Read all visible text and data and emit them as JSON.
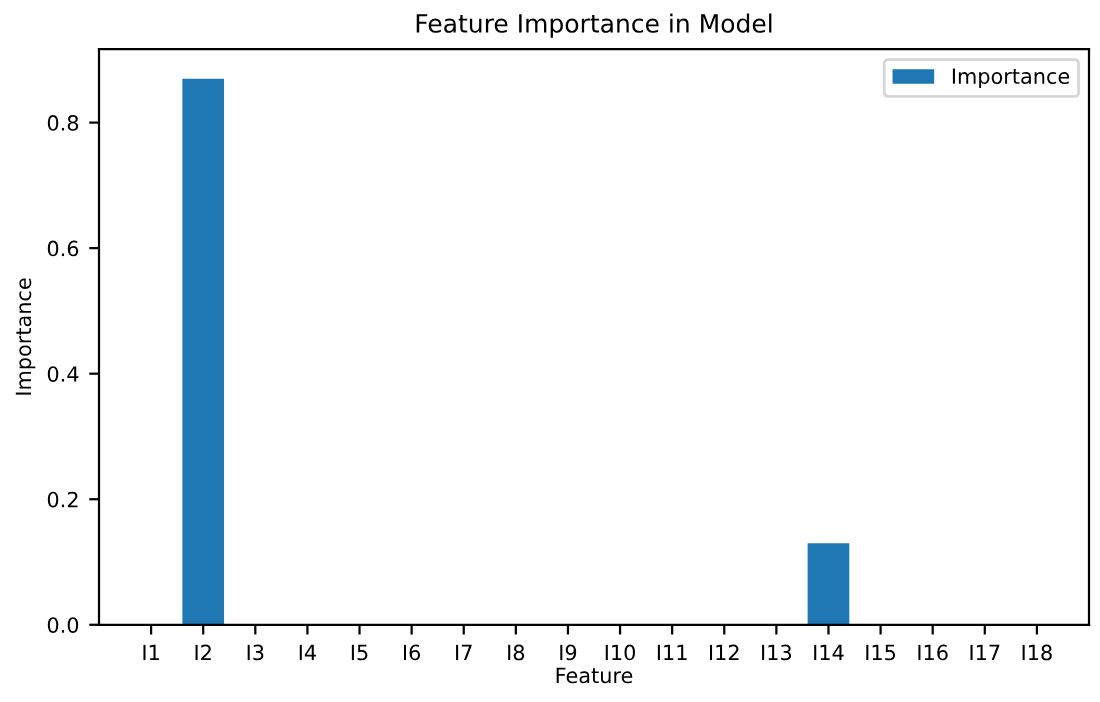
{
  "chart_data": {
    "type": "bar",
    "title": "Feature Importance in Model",
    "xlabel": "Feature",
    "ylabel": "Importance",
    "categories": [
      "I1",
      "I2",
      "I3",
      "I4",
      "I5",
      "I6",
      "I7",
      "I8",
      "I9",
      "I10",
      "I11",
      "I12",
      "I13",
      "I14",
      "I15",
      "I16",
      "I17",
      "I18"
    ],
    "series": [
      {
        "name": "Importance",
        "color": "#1f77b4",
        "values": [
          0,
          0.87,
          0,
          0,
          0,
          0,
          0,
          0,
          0,
          0,
          0,
          0,
          0,
          0.13,
          0,
          0,
          0,
          0
        ]
      }
    ],
    "ylim": [
      0,
      0.917
    ],
    "yticks": [
      {
        "value": 0,
        "label": "0.0"
      },
      0.2,
      0.4,
      0.6,
      0.8
    ],
    "legend": "top right"
  }
}
